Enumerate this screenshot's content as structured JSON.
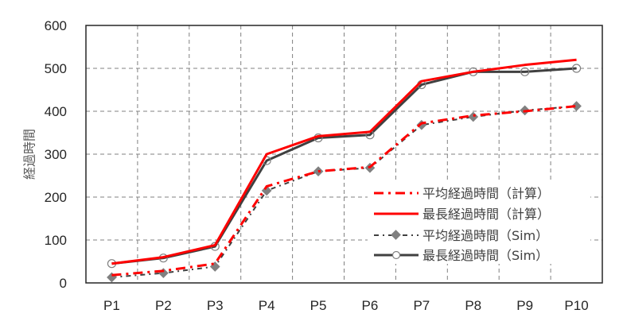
{
  "chart_data": {
    "type": "line",
    "title": "",
    "xlabel": "",
    "ylabel": "経過時間",
    "ylim": [
      0,
      600
    ],
    "yticks": [
      0,
      100,
      200,
      300,
      400,
      500,
      600
    ],
    "grid": true,
    "legend_position": "lower right (inside)",
    "categories": [
      "P1",
      "P2",
      "P3",
      "P4",
      "P5",
      "P6",
      "P7",
      "P8",
      "P9",
      "P10"
    ],
    "series": [
      {
        "name": "平均経過時間（計算）",
        "style": "red dash-dot, no marker",
        "color": "#FF0000",
        "values": [
          18,
          28,
          45,
          225,
          260,
          270,
          372,
          390,
          400,
          412
        ]
      },
      {
        "name": "最長経過時間（計算）",
        "style": "red solid, no marker",
        "color": "#FF0000",
        "values": [
          45,
          60,
          88,
          300,
          342,
          352,
          470,
          492,
          508,
          520
        ]
      },
      {
        "name": "平均経過時間（Sim）",
        "style": "dark gray dash-dot, diamond marker",
        "color": "#404040",
        "marker_color": "#808080",
        "values": [
          13,
          23,
          38,
          215,
          260,
          268,
          368,
          387,
          402,
          412
        ]
      },
      {
        "name": "最長経過時間（Sim）",
        "style": "dark gray solid, open circle marker",
        "color": "#404040",
        "marker_color": "#808080",
        "values": [
          45,
          58,
          85,
          285,
          338,
          345,
          462,
          492,
          492,
          500
        ]
      }
    ]
  },
  "axis": {
    "y_label": "経過時間",
    "y_ticks": [
      "0",
      "100",
      "200",
      "300",
      "400",
      "500",
      "600"
    ],
    "x_ticks": [
      "P1",
      "P2",
      "P3",
      "P4",
      "P5",
      "P6",
      "P7",
      "P8",
      "P9",
      "P10"
    ]
  },
  "legend": {
    "items": [
      {
        "label": "平均経過時間（計算）"
      },
      {
        "label": "最長経過時間（計算）"
      },
      {
        "label": "平均経過時間（Sim）"
      },
      {
        "label": "最長経過時間（Sim）"
      }
    ]
  }
}
